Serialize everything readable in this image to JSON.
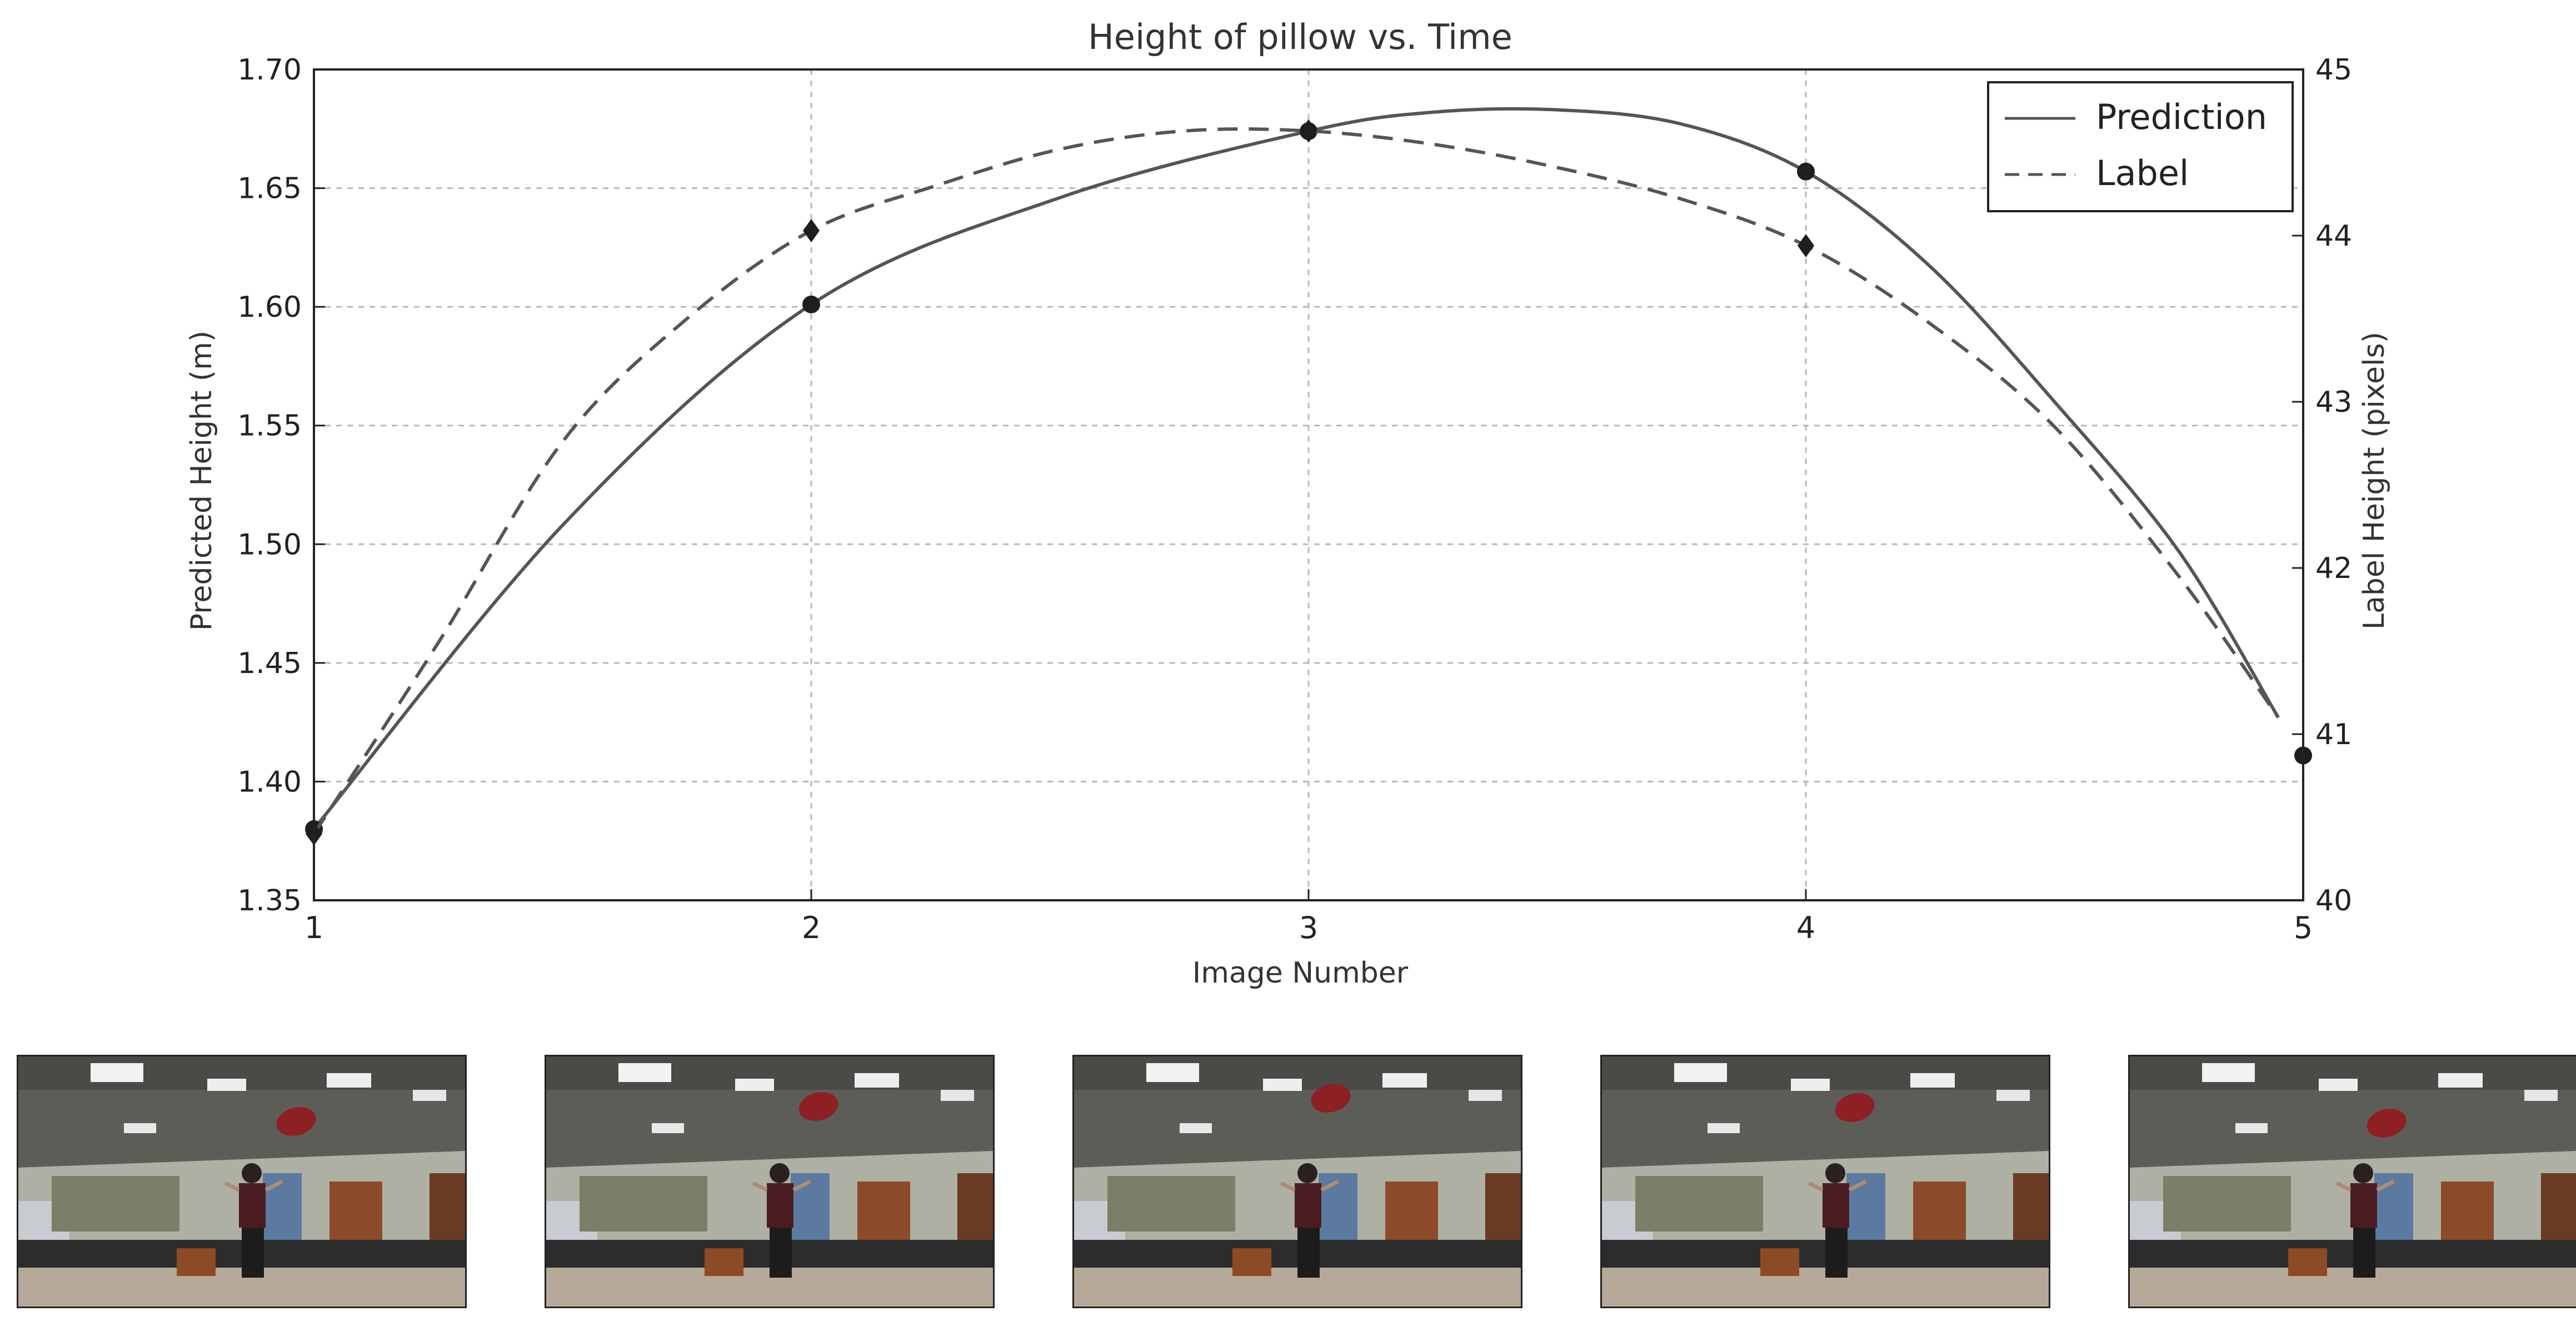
{
  "chart_data": {
    "type": "line",
    "title": "Height of pillow vs. Time",
    "xlabel": "Image Number",
    "ylabel": "Predicted Height (m)",
    "y2label": "Label Height (pixels)",
    "xlim": [
      1,
      5
    ],
    "ylim": [
      1.35,
      1.7
    ],
    "y2lim": [
      40,
      45
    ],
    "xticks": [
      "1",
      "2",
      "3",
      "4",
      "5"
    ],
    "yticks": [
      "1.35",
      "1.40",
      "1.45",
      "1.50",
      "1.55",
      "1.60",
      "1.65",
      "1.70"
    ],
    "y2ticks": [
      "40",
      "41",
      "42",
      "43",
      "44",
      "45"
    ],
    "grid": true,
    "legend_position": "top-right",
    "series": [
      {
        "name": "Prediction",
        "axis": "left",
        "line_style": "solid",
        "marker": "circle",
        "points": [
          {
            "x": 1,
            "y": 1.38
          },
          {
            "x": 2,
            "y": 1.601
          },
          {
            "x": 3,
            "y": 1.674
          },
          {
            "x": 4,
            "y": 1.657
          },
          {
            "x": 5,
            "y": 1.411
          }
        ],
        "curve": [
          {
            "x": 1.0,
            "y": 1.38
          },
          {
            "x": 1.5,
            "y": 1.508
          },
          {
            "x": 2.0,
            "y": 1.601
          },
          {
            "x": 2.5,
            "y": 1.646
          },
          {
            "x": 3.0,
            "y": 1.674
          },
          {
            "x": 3.25,
            "y": 1.682
          },
          {
            "x": 3.5,
            "y": 1.683
          },
          {
            "x": 3.75,
            "y": 1.677
          },
          {
            "x": 4.0,
            "y": 1.657
          },
          {
            "x": 4.25,
            "y": 1.617
          },
          {
            "x": 4.5,
            "y": 1.56
          },
          {
            "x": 4.75,
            "y": 1.497
          },
          {
            "x": 4.95,
            "y": 1.427
          }
        ]
      },
      {
        "name": "Label",
        "axis": "right",
        "line_style": "dashed",
        "marker": "diamond",
        "points": [
          {
            "x": 1,
            "y": 40.4
          },
          {
            "x": 2,
            "y": 44.03
          },
          {
            "x": 3,
            "y": 44.63
          },
          {
            "x": 4,
            "y": 43.94
          }
        ],
        "curve": [
          {
            "x": 1.0,
            "y": 40.4
          },
          {
            "x": 1.25,
            "y": 41.55
          },
          {
            "x": 1.5,
            "y": 42.76
          },
          {
            "x": 1.75,
            "y": 43.5
          },
          {
            "x": 2.0,
            "y": 44.03
          },
          {
            "x": 2.25,
            "y": 44.3
          },
          {
            "x": 2.5,
            "y": 44.52
          },
          {
            "x": 2.75,
            "y": 44.63
          },
          {
            "x": 3.0,
            "y": 44.63
          },
          {
            "x": 3.25,
            "y": 44.55
          },
          {
            "x": 3.5,
            "y": 44.41
          },
          {
            "x": 3.75,
            "y": 44.22
          },
          {
            "x": 4.0,
            "y": 43.94
          },
          {
            "x": 4.25,
            "y": 43.47
          },
          {
            "x": 4.5,
            "y": 42.85
          },
          {
            "x": 4.75,
            "y": 41.95
          },
          {
            "x": 4.95,
            "y": 41.1
          }
        ]
      }
    ]
  },
  "thumbnails": [
    {
      "image_number": 1,
      "pillow_color": "#8e1f22"
    },
    {
      "image_number": 2,
      "pillow_color": "#8e1f22"
    },
    {
      "image_number": 3,
      "pillow_color": "#8e1f22"
    },
    {
      "image_number": 4,
      "pillow_color": "#8e1f22"
    },
    {
      "image_number": 5,
      "pillow_color": "#8e1f22"
    }
  ],
  "colors": {
    "line": "#555555",
    "marker": "#1e1e1e",
    "grid": "#b8b8b8",
    "text": "#222222"
  }
}
